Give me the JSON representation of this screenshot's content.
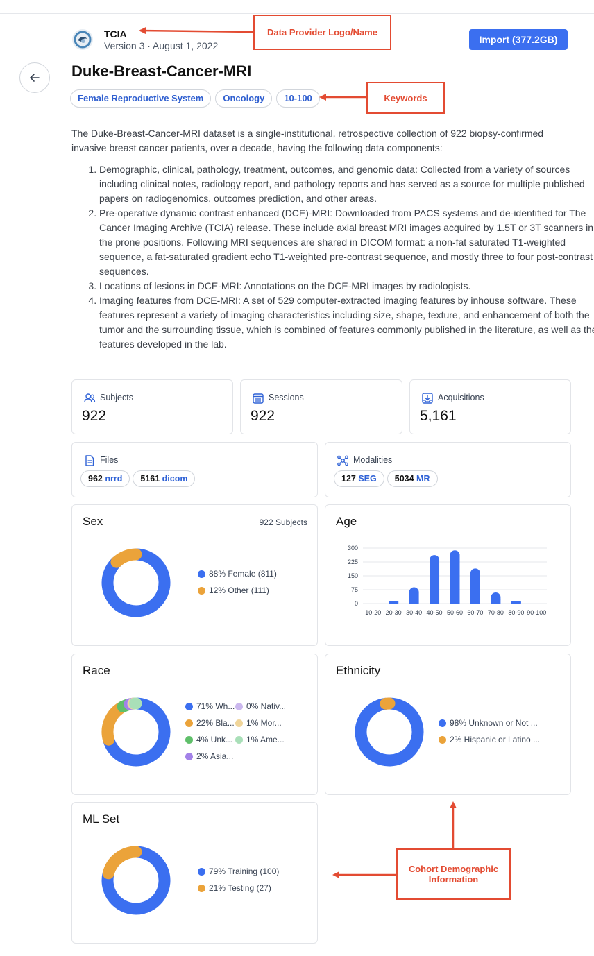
{
  "header": {
    "provider_name": "TCIA",
    "version_line": "Version 3 · August 1, 2022",
    "import_label": "Import (377.2GB)",
    "title": "Duke-Breast-Cancer-MRI"
  },
  "tags": [
    "Female Reproductive System",
    "Oncology",
    "10-100"
  ],
  "annotations": {
    "provider": "Data Provider Logo/Name",
    "keywords": "Keywords",
    "demographics": "Cohort Demographic Information"
  },
  "description": {
    "intro": "The Duke-Breast-Cancer-MRI dataset is a single-institutional, retrospective collection of 922 biopsy-confirmed invasive breast cancer patients, over a decade, having the following data components:",
    "items": [
      "Demographic, clinical, pathology, treatment, outcomes, and genomic data: Collected from a variety of sources including clinical notes, radiology report, and pathology reports and has served as a source for multiple published papers on radiogenomics, outcomes prediction, and other areas.",
      "Pre-operative dynamic contrast enhanced (DCE)-MRI: Downloaded from PACS systems and de-identified for The Cancer Imaging Archive (TCIA) release. These include axial breast MRI images acquired by 1.5T or 3T scanners in the prone positions. Following MRI sequences are shared in DICOM format: a non-fat saturated T1-weighted sequence, a fat-saturated gradient echo T1-weighted pre-contrast sequence, and mostly three to four post-contrast sequences.",
      "Locations of lesions in DCE-MRI: Annotations on the DCE-MRI images by radiologists.",
      "Imaging features from DCE-MRI: A set of 529 computer-extracted imaging features by inhouse software. These features represent a variety of imaging characteristics including size, shape, texture, and enhancement of both the tumor and the surrounding tissue, which is combined of features commonly published in the literature, as well as the features developed in the lab."
    ]
  },
  "stats": {
    "subjects": {
      "label": "Subjects",
      "value": "922"
    },
    "sessions": {
      "label": "Sessions",
      "value": "922"
    },
    "acquisitions": {
      "label": "Acquisitions",
      "value": "5,161"
    }
  },
  "files": {
    "label": "Files",
    "items": [
      {
        "count": "962",
        "type": "nrrd"
      },
      {
        "count": "5161",
        "type": "dicom"
      }
    ]
  },
  "modalities": {
    "label": "Modalities",
    "items": [
      {
        "count": "127",
        "type": "SEG"
      },
      {
        "count": "5034",
        "type": "MR"
      }
    ]
  },
  "colors": {
    "blue": "#3b6ff0",
    "orange": "#eba33a",
    "green": "#5fbf6a",
    "lavender": "#cbb8ee",
    "sand": "#f0d59a",
    "mint": "#a9dfb8",
    "purple": "#a382e8",
    "annotation": "#e34b32"
  },
  "chart_data": [
    {
      "type": "pie",
      "title": "Sex",
      "note": "922 Subjects",
      "slices": [
        {
          "label": "88% Female (811)",
          "value": 88,
          "color": "#3b6ff0"
        },
        {
          "label": "12% Other (111)",
          "value": 12,
          "color": "#eba33a"
        }
      ]
    },
    {
      "type": "bar",
      "title": "Age",
      "categories": [
        "10-20",
        "20-30",
        "30-40",
        "40-50",
        "50-60",
        "60-70",
        "70-80",
        "80-90",
        "90-100"
      ],
      "values": [
        0,
        14,
        88,
        262,
        288,
        190,
        60,
        12,
        0
      ],
      "yticks": [
        "0",
        "75",
        "150",
        "225",
        "300"
      ],
      "ylim": [
        0,
        300
      ],
      "color": "#3b6ff0"
    },
    {
      "type": "pie",
      "title": "Race",
      "slices": [
        {
          "label": "71% Wh...",
          "value": 71,
          "color": "#3b6ff0"
        },
        {
          "label": "22% Bla...",
          "value": 22,
          "color": "#eba33a"
        },
        {
          "label": "4% Unk...",
          "value": 4,
          "color": "#5fbf6a"
        },
        {
          "label": "2% Asia...",
          "value": 2,
          "color": "#a382e8"
        },
        {
          "label": "0% Nativ...",
          "value": 0.3,
          "color": "#cbb8ee"
        },
        {
          "label": "1% Mor...",
          "value": 0.7,
          "color": "#f0d59a"
        },
        {
          "label": "1% Ame...",
          "value": 0.6,
          "color": "#a9dfb8"
        }
      ]
    },
    {
      "type": "pie",
      "title": "Ethnicity",
      "slices": [
        {
          "label": "98% Unknown or Not ...",
          "value": 98,
          "color": "#3b6ff0"
        },
        {
          "label": "2% Hispanic or Latino ...",
          "value": 2,
          "color": "#eba33a"
        }
      ]
    },
    {
      "type": "pie",
      "title": "ML Set",
      "slices": [
        {
          "label": "79% Training (100)",
          "value": 79,
          "color": "#3b6ff0"
        },
        {
          "label": "21% Testing (27)",
          "value": 21,
          "color": "#eba33a"
        }
      ]
    }
  ]
}
